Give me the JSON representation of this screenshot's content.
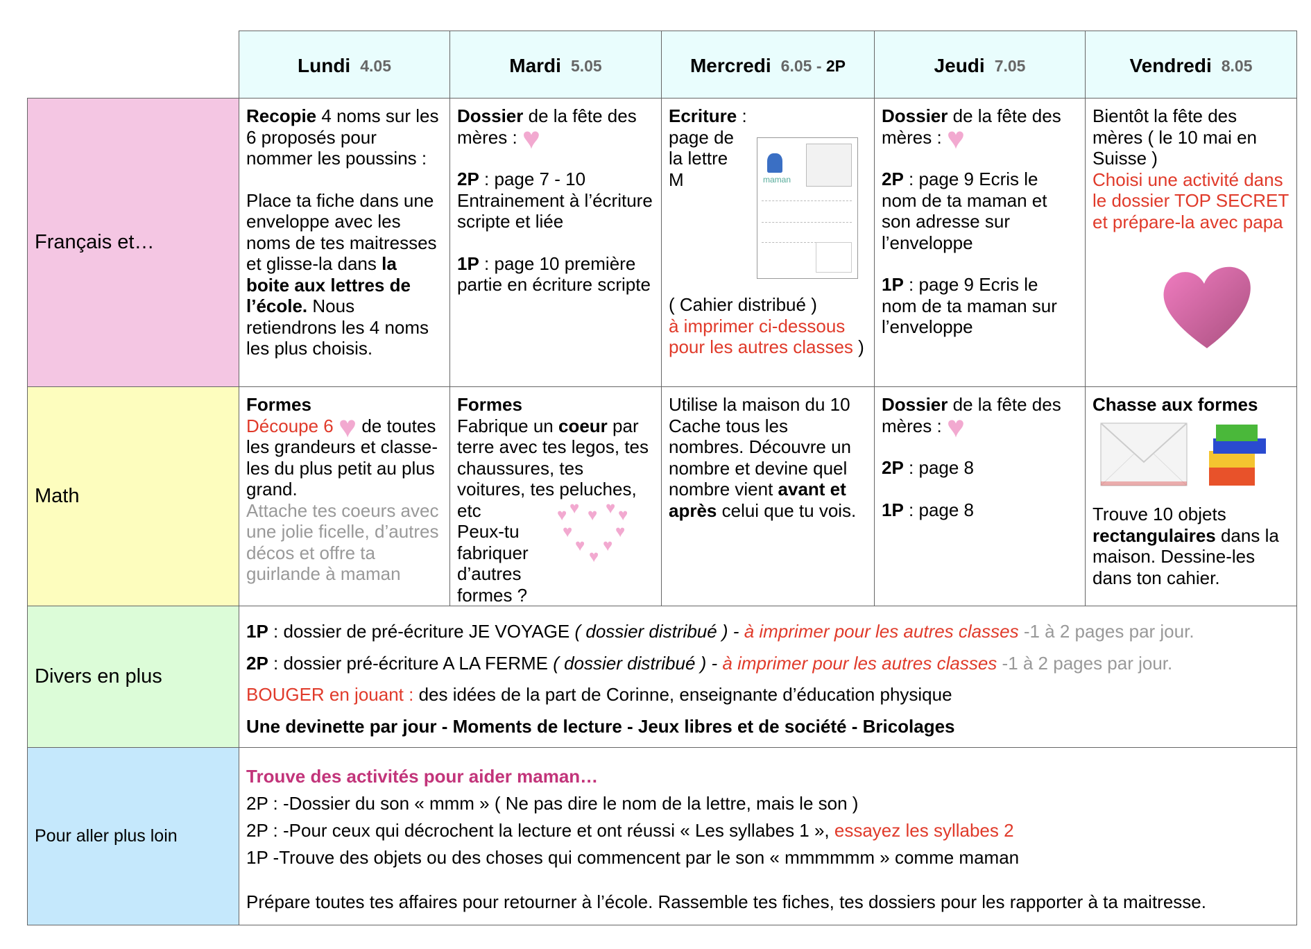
{
  "header": {
    "days": [
      {
        "name": "Lundi",
        "date": "4.05",
        "extra": ""
      },
      {
        "name": "Mardi",
        "date": "5.05",
        "extra": ""
      },
      {
        "name": "Mercredi",
        "date": "6.05 - ",
        "extra": "2P"
      },
      {
        "name": "Jeudi",
        "date": "7.05",
        "extra": ""
      },
      {
        "name": "Vendredi",
        "date": "8.05",
        "extra": ""
      }
    ]
  },
  "rows": {
    "francais": "Français et…",
    "math": "Math",
    "divers": "Divers en plus",
    "loin": "Pour aller plus loin"
  },
  "fr": {
    "lundi": {
      "b1": "Recopie",
      "t1": " 4 noms sur les 6 proposés pour nommer les poussins :",
      "t2": "Place ta fiche dans une enveloppe avec les noms de tes maitresses et glisse-la dans ",
      "b2": "la boite aux lettres de l’école.",
      "t3": " Nous retiendrons les 4 noms les plus choisis."
    },
    "mardi": {
      "b1": "Dossier",
      "t1": " de la fête des mères :",
      "b2": "2P",
      "t2": " : page 7 - 10 Entrainement à l’écriture scripte et liée",
      "b3": "1P",
      "t3": " : page 10 première partie en écriture scripte"
    },
    "mercredi": {
      "b1": "Ecriture",
      "t1": " :",
      "t2": "page de la lettre M",
      "thumb": "maman",
      "t3": "( Cahier distribué )",
      "r1": "à imprimer ci-dessous pour les autres classes",
      "t4": " )"
    },
    "jeudi": {
      "b1": "Dossier",
      "t1": " de la fête des mères :",
      "b2": "2P",
      "t2": " : page 9 Ecris le nom de ta maman et son adresse sur l’enveloppe",
      "b3": "1P",
      "t3": " : page 9 Ecris le nom de ta maman sur l’enveloppe"
    },
    "vendredi": {
      "t1": "Bientôt la fête des mères ( le 10 mai en Suisse )",
      "r1": "Choisi une activité dans le dossier TOP SECRET et prépare-la avec papa"
    }
  },
  "math": {
    "lundi": {
      "b1": "Formes",
      "r1": "Découpe 6",
      "t1": " de toutes les grandeurs et classe-les du plus petit au plus grand.",
      "g1": "Attache tes coeurs avec une jolie ficelle, d’autres décos et offre ta guirlande à maman"
    },
    "mardi": {
      "b1": "Formes",
      "t1": "Fabrique un ",
      "b2": "coeur",
      "t2": " par terre avec tes legos, tes chaussures, tes voitures, tes peluches, etc",
      "t3": "Peux-tu fabriquer d’autres  formes ?"
    },
    "mercredi": {
      "t1": "Utilise la maison du 10 Cache tous les nombres. Découvre un nombre et devine quel nombre vient ",
      "b1": "avant et après",
      "t2": " celui que tu vois."
    },
    "jeudi": {
      "b1": "Dossier",
      "t1": " de la fête des mères :",
      "b2": "2P",
      "t2": " : page 8",
      "b3": "1P",
      "t3": " : page 8"
    },
    "vendredi": {
      "b1": "Chasse aux formes",
      "t1": "Trouve 10 objets ",
      "b2": "rectangulaires",
      "t2": " dans la maison. Dessine-les dans ton cahier."
    }
  },
  "divers": [
    {
      "b": "1P",
      "t": " : dossier de pré-écriture JE VOYAGE ",
      "i": "( dossier distribué ) - ",
      "r": "à imprimer pour les autres classes",
      "g": " -1 à 2 pages par jour."
    },
    {
      "b": "2P",
      "t": " : dossier pré-écriture A LA FERME ",
      "i": "( dossier distribué ) - ",
      "r": "à imprimer pour les autres classes",
      "g": " -1 à 2 pages par jour."
    },
    {
      "r": "BOUGER en jouant :",
      "t": " des idées de la part de Corinne, enseignante d’éducation physique"
    },
    {
      "b": "Une devinette par jour - Moments de lecture - Jeux libres et de société - Bricolages"
    }
  ],
  "loin": {
    "title": "Trouve des activités pour aider maman…",
    "l1": "2P : -Dossier du son « mmm » ( Ne pas dire le nom de la lettre, mais le son )",
    "l2": "2P : -Pour ceux qui décrochent la lecture et ont réussi « Les syllabes 1 », ",
    "l2r": "essayez les syllabes 2",
    "l3": "1P  -Trouve des objets ou des choses qui commencent par le son « mmmmmm » comme maman",
    "l4": "Prépare toutes tes affaires pour retourner à l’école. Rassemble tes fiches, tes dossiers pour les rapporter à ta maitresse."
  },
  "colors": {
    "header": "#e9fdfd",
    "francais": "#f4c6e3",
    "math": "#fdfdbe",
    "divers": "#dcfcd8",
    "loin": "#c5e8fc",
    "red": "#e03a2a",
    "heart": "#f2a9d0"
  }
}
